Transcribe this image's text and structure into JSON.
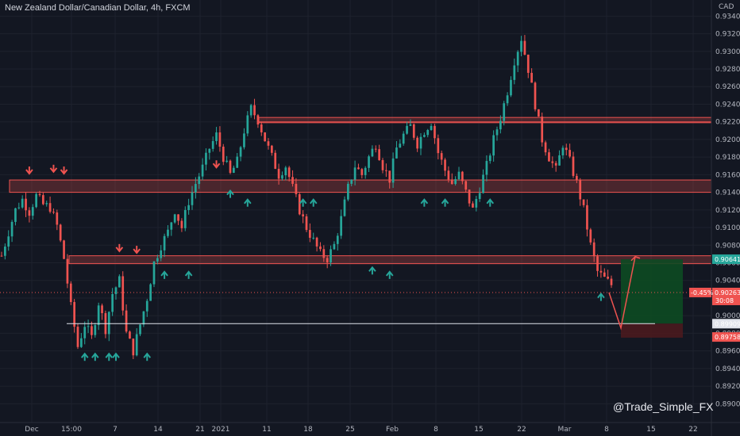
{
  "header": {
    "title": "New Zealand Dollar/Canadian Dollar, 4h, FXCM"
  },
  "watermark": "@Trade_Simple_FX",
  "colors": {
    "background": "#131722",
    "grid": "#1e222d",
    "up": "#26a69a",
    "down": "#ef5350",
    "zone": "#ef5350",
    "target": "#1b5e20",
    "arrow_up": "#26a69a",
    "arrow_down": "#ef5350"
  },
  "y_axis": {
    "currency_label": "CAD",
    "ticks": [
      "0.93400",
      "0.93200",
      "0.93000",
      "0.92800",
      "0.92600",
      "0.92400",
      "0.92200",
      "0.92000",
      "0.91800",
      "0.91600",
      "0.91400",
      "0.91200",
      "0.91000",
      "0.90800",
      "0.90600",
      "0.90400",
      "0.90200",
      "0.90000",
      "0.89800",
      "0.89600",
      "0.89400",
      "0.89200",
      "0.89000"
    ]
  },
  "x_axis": {
    "labels": [
      "Dec",
      "15:00",
      "7",
      "14",
      "21",
      "2021",
      "11",
      "18",
      "25",
      "Feb",
      "8",
      "15",
      "22",
      "Mar",
      "8",
      "15",
      "22"
    ]
  },
  "price_tags": {
    "entry": "0.90641",
    "current": {
      "change": "-0.45%",
      "price": "0.90263",
      "countdown": "30:08"
    },
    "low_line": "0.89909",
    "stop": "0.89758"
  },
  "chart_data": {
    "type": "candlestick",
    "title": "New Zealand Dollar/Canadian Dollar, 4h, FXCM",
    "ylim": [
      0.8885,
      0.9352
    ],
    "x_tick_labels": [
      "Dec",
      "15:00",
      "7",
      "14",
      "21",
      "2021",
      "11",
      "18",
      "25",
      "Feb",
      "8",
      "15",
      "22",
      "Mar",
      "8",
      "15",
      "22"
    ],
    "close_path": [
      [
        0,
        0.9068
      ],
      [
        2,
        0.9095
      ],
      [
        4,
        0.912
      ],
      [
        6,
        0.9132
      ],
      [
        8,
        0.9118
      ],
      [
        10,
        0.9136
      ],
      [
        12,
        0.9126
      ],
      [
        14,
        0.9123
      ],
      [
        16,
        0.9102
      ],
      [
        18,
        0.9065
      ],
      [
        20,
        0.901
      ],
      [
        22,
        0.8965
      ],
      [
        24,
        0.899
      ],
      [
        26,
        0.8975
      ],
      [
        28,
        0.9015
      ],
      [
        30,
        0.8985
      ],
      [
        32,
        0.9025
      ],
      [
        34,
        0.904
      ],
      [
        36,
        0.898
      ],
      [
        38,
        0.896
      ],
      [
        40,
        0.899
      ],
      [
        42,
        0.902
      ],
      [
        44,
        0.906
      ],
      [
        46,
        0.908
      ],
      [
        48,
        0.9095
      ],
      [
        50,
        0.912
      ],
      [
        52,
        0.91
      ],
      [
        54,
        0.913
      ],
      [
        56,
        0.915
      ],
      [
        58,
        0.9168
      ],
      [
        60,
        0.919
      ],
      [
        62,
        0.9205
      ],
      [
        64,
        0.918
      ],
      [
        66,
        0.916
      ],
      [
        68,
        0.9175
      ],
      [
        70,
        0.921
      ],
      [
        72,
        0.9235
      ],
      [
        74,
        0.9222
      ],
      [
        76,
        0.92
      ],
      [
        78,
        0.918
      ],
      [
        80,
        0.916
      ],
      [
        82,
        0.917
      ],
      [
        84,
        0.9145
      ],
      [
        86,
        0.912
      ],
      [
        88,
        0.91
      ],
      [
        90,
        0.9085
      ],
      [
        92,
        0.907
      ],
      [
        94,
        0.9065
      ],
      [
        96,
        0.908
      ],
      [
        98,
        0.911
      ],
      [
        100,
        0.9145
      ],
      [
        102,
        0.917
      ],
      [
        104,
        0.916
      ],
      [
        106,
        0.918
      ],
      [
        108,
        0.9195
      ],
      [
        110,
        0.917
      ],
      [
        112,
        0.9155
      ],
      [
        114,
        0.919
      ],
      [
        116,
        0.9205
      ],
      [
        118,
        0.9215
      ],
      [
        120,
        0.9195
      ],
      [
        122,
        0.921
      ],
      [
        124,
        0.922
      ],
      [
        126,
        0.9185
      ],
      [
        128,
        0.9165
      ],
      [
        130,
        0.915
      ],
      [
        132,
        0.916
      ],
      [
        134,
        0.914
      ],
      [
        136,
        0.912
      ],
      [
        138,
        0.9145
      ],
      [
        140,
        0.917
      ],
      [
        142,
        0.92
      ],
      [
        144,
        0.9225
      ],
      [
        146,
        0.9255
      ],
      [
        148,
        0.929
      ],
      [
        150,
        0.9315
      ],
      [
        152,
        0.928
      ],
      [
        154,
        0.924
      ],
      [
        156,
        0.92
      ],
      [
        158,
        0.918
      ],
      [
        160,
        0.9165
      ],
      [
        162,
        0.9195
      ],
      [
        164,
        0.9175
      ],
      [
        166,
        0.915
      ],
      [
        168,
        0.912
      ],
      [
        170,
        0.908
      ],
      [
        172,
        0.905
      ],
      [
        174,
        0.9042
      ],
      [
        176,
        0.9035
      ]
    ],
    "resistance_supports": [
      {
        "from": 0.914,
        "to": 0.9154
      },
      {
        "from": 0.9219,
        "to": 0.9225
      },
      {
        "from": 0.9059,
        "to": 0.9068
      }
    ],
    "levels": {
      "entry": 0.90641,
      "current": 0.90263,
      "low_line": 0.89909,
      "stop": 0.89758
    },
    "projection": [
      [
        0.90263,
        0.8986
      ],
      [
        0.8986,
        0.9067
      ]
    ],
    "down_arrows_at": [
      [
        8,
        0.9163
      ],
      [
        15,
        0.9165
      ],
      [
        18,
        0.9163
      ],
      [
        34,
        0.9075
      ],
      [
        39,
        0.9073
      ],
      [
        62,
        0.917
      ]
    ],
    "up_arrows_at": [
      [
        24,
        0.8955
      ],
      [
        27,
        0.8955
      ],
      [
        31,
        0.8955
      ],
      [
        33,
        0.8955
      ],
      [
        42,
        0.8955
      ],
      [
        47,
        0.9048
      ],
      [
        54,
        0.9048
      ],
      [
        66,
        0.914
      ],
      [
        71,
        0.913
      ],
      [
        87,
        0.913
      ],
      [
        90,
        0.913
      ],
      [
        107,
        0.9053
      ],
      [
        112,
        0.9048
      ],
      [
        122,
        0.913
      ],
      [
        128,
        0.913
      ],
      [
        141,
        0.913
      ],
      [
        173,
        0.9023
      ]
    ]
  }
}
